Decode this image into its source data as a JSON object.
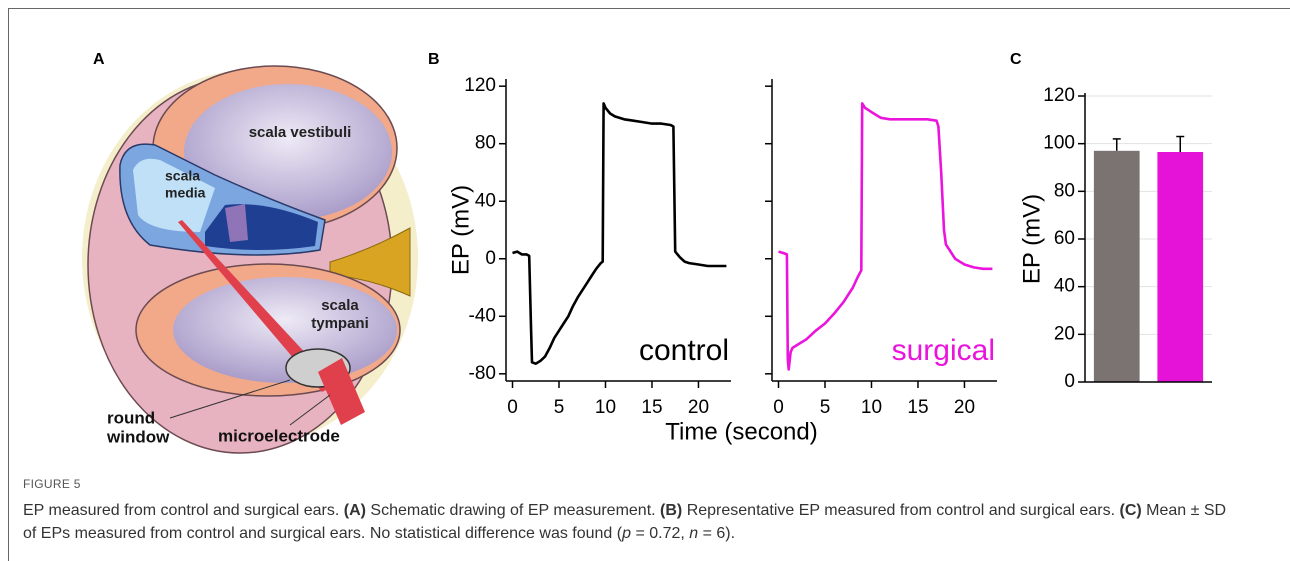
{
  "figure": {
    "panels": [
      "A",
      "B",
      "C"
    ],
    "schematic_labels": [
      "scala vestibuli",
      "scala",
      "media",
      "scala",
      "tympani",
      "round",
      "window",
      "microelectrode"
    ],
    "caption_label": "FIGURE 5",
    "caption_parts": [
      "EP measured from control and surgical ears. ",
      "(A)",
      " Schematic drawing of EP measurement. ",
      "(B)",
      " Representative EP measured from control and surgical ears. ",
      "(C)",
      " Mean ± SD of EPs measured from control and surgical ears. No statistical difference was found (",
      "p",
      " = 0.72, ",
      "n",
      " = 6)."
    ]
  },
  "chart_data": [
    {
      "type": "line",
      "ylabel": "EP (mV)",
      "xlabel": "Time (second)",
      "xlim": [
        -0.7,
        23.5
      ],
      "ylim": [
        -85,
        125
      ],
      "xticks": [
        0,
        5,
        10,
        15,
        20
      ],
      "yticks": [
        -80,
        -40,
        0,
        40,
        80,
        120
      ],
      "series": [
        {
          "name": "control",
          "color": "#000000",
          "x": [
            0,
            0.5,
            1,
            1.5,
            1.8,
            2.0,
            2.1,
            2.5,
            3,
            3.5,
            4,
            4.5,
            5,
            5.5,
            6,
            6.5,
            7,
            7.5,
            8,
            8.5,
            9,
            9.5,
            9.7,
            9.8,
            10,
            10.5,
            11,
            12,
            13,
            14,
            15,
            16,
            17,
            17.3,
            17.5,
            18,
            18.5,
            19,
            20,
            21,
            22,
            23
          ],
          "values": [
            4,
            5,
            3,
            3,
            2,
            -50,
            -72,
            -73,
            -71,
            -68,
            -62,
            -55,
            -50,
            -45,
            -40,
            -33,
            -27,
            -22,
            -17,
            -12,
            -7,
            -3,
            -2,
            108,
            105,
            101,
            99,
            97,
            96,
            95,
            94,
            94,
            93,
            92,
            5,
            1,
            -2,
            -3,
            -4,
            -5,
            -5,
            -5
          ]
        }
      ]
    },
    {
      "type": "line",
      "show_ytick_labels": false,
      "xlim": [
        -0.7,
        23.5
      ],
      "ylim": [
        -85,
        125
      ],
      "xticks": [
        0,
        5,
        10,
        15,
        20
      ],
      "yticks": [
        -80,
        -40,
        0,
        40,
        80,
        120
      ],
      "series": [
        {
          "name": "surgical",
          "color": "#ea14dc",
          "x": [
            0,
            0.5,
            0.9,
            1.0,
            1.1,
            1.3,
            1.5,
            2,
            3,
            4,
            5,
            6,
            7,
            8,
            8.5,
            8.9,
            9.0,
            9.3,
            10,
            11,
            12,
            14,
            16,
            17,
            17.2,
            17.5,
            17.8,
            18,
            19,
            20,
            21,
            22,
            23
          ],
          "values": [
            5,
            4,
            3,
            -70,
            -77,
            -65,
            -62,
            -60,
            -56,
            -50,
            -45,
            -38,
            -30,
            -20,
            -13,
            -8,
            108,
            105,
            102,
            98,
            97,
            97,
            97,
            96,
            92,
            60,
            20,
            10,
            0,
            -4,
            -6,
            -7,
            -7
          ]
        }
      ]
    },
    {
      "type": "bar",
      "ylabel": "EP (mV)",
      "grid": true,
      "categories": [
        null,
        null
      ],
      "ylim": [
        0,
        120
      ],
      "yticks": [
        0,
        20,
        40,
        60,
        80,
        100,
        120
      ],
      "values": [
        97,
        96.5
      ],
      "errors": [
        5,
        6.5
      ],
      "colors": [
        "#7a7372",
        "#e513d7"
      ]
    }
  ]
}
